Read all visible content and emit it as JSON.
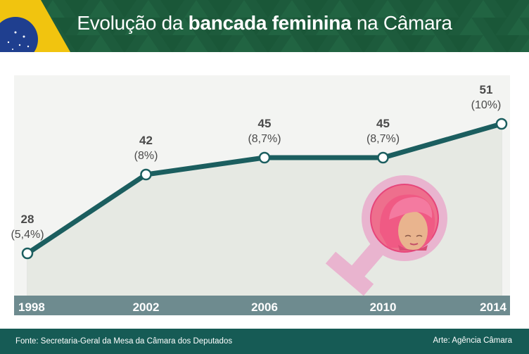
{
  "header": {
    "title_pre": "Evolução da ",
    "title_bold": "bancada feminina",
    "title_post": " na Câmara"
  },
  "colors": {
    "header_bg": "#1d5b3c",
    "line": "#1b5e5f",
    "axis_bar": "#6e8b8f",
    "footer_bg": "#165b55",
    "symbol_pink": "#e9b4cf",
    "accent_pink": "#e6457a"
  },
  "icons": [
    "brazil-flag-icon",
    "female-symbol-icon",
    "woman-face-icon"
  ],
  "chart_data": {
    "type": "area",
    "x": [
      "1998",
      "2002",
      "2006",
      "2010",
      "2014"
    ],
    "values": [
      28,
      42,
      45,
      45,
      51
    ],
    "value_labels": [
      "28",
      "42",
      "45",
      "45",
      "51"
    ],
    "percent_labels": [
      "(5,4%)",
      "(8%)",
      "(8,7%)",
      "(8,7%)",
      "(10%)"
    ],
    "ylim": [
      10,
      55
    ],
    "grid": "vertical",
    "legend": "none"
  },
  "footer": {
    "source": "Fonte: Secretaria-Geral da Mesa da Câmara dos Deputados",
    "credit": "Arte: Agência Câmara"
  }
}
